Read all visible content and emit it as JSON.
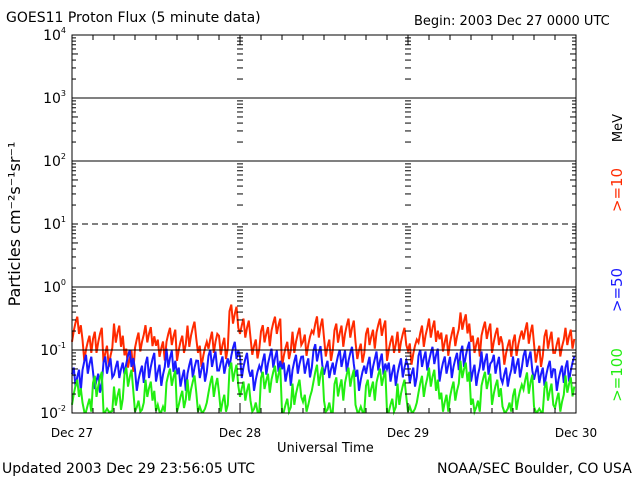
{
  "chart_data": {
    "type": "line",
    "title": "GOES11 Proton Flux (5 minute data)",
    "begin_label": "Begin: 2003 Dec 27 0000 UTC",
    "xlabel": "Universal Time",
    "ylabel": "Particles cm⁻²s⁻¹sr⁻¹",
    "yscale": "log",
    "ylim": [
      0.01,
      10000
    ],
    "ytick_labels": [
      {
        "base": "10",
        "exp": "4",
        "value": 10000
      },
      {
        "base": "10",
        "exp": "3",
        "value": 1000
      },
      {
        "base": "10",
        "exp": "2",
        "value": 100
      },
      {
        "base": "10",
        "exp": "1",
        "value": 10
      },
      {
        "base": "10",
        "exp": "0",
        "value": 1
      },
      {
        "base": "10",
        "exp": "-1",
        "value": 0.1
      },
      {
        "base": "10",
        "exp": "-2",
        "value": 0.01
      }
    ],
    "xlim_hours": [
      0,
      72
    ],
    "xtick_labels": [
      {
        "label": "Dec 27",
        "hour": 0
      },
      {
        "label": "Dec 28",
        "hour": 24
      },
      {
        "label": "Dec 29",
        "hour": 48
      },
      {
        "label": "Dec 30",
        "hour": 72
      }
    ],
    "units_label": "MeV",
    "x_hours_step": 1.5,
    "series": [
      {
        "name": ">=10",
        "color": "#ff2a00",
        "values": [
          0.3,
          0.15,
          0.2,
          0.12,
          0.25,
          0.1,
          0.18,
          0.22,
          0.13,
          0.2,
          0.15,
          0.25,
          0.12,
          0.2,
          0.16,
          0.5,
          0.3,
          0.14,
          0.22,
          0.3,
          0.12,
          0.2,
          0.18,
          0.35,
          0.15,
          0.25,
          0.3,
          0.12,
          0.2,
          0.28,
          0.15,
          0.2,
          0.13,
          0.25,
          0.3,
          0.18,
          0.22,
          0.35,
          0.15,
          0.25,
          0.2,
          0.13,
          0.18,
          0.28,
          0.12,
          0.2,
          0.15,
          0.2
        ]
      },
      {
        "name": ">=50",
        "color": "#1a1aff",
        "values": [
          0.05,
          0.08,
          0.04,
          0.07,
          0.06,
          0.09,
          0.05,
          0.08,
          0.06,
          0.1,
          0.05,
          0.07,
          0.06,
          0.09,
          0.07,
          0.12,
          0.08,
          0.05,
          0.09,
          0.1,
          0.06,
          0.08,
          0.07,
          0.11,
          0.06,
          0.09,
          0.1,
          0.05,
          0.08,
          0.09,
          0.06,
          0.07,
          0.05,
          0.09,
          0.1,
          0.07,
          0.08,
          0.12,
          0.06,
          0.09,
          0.08,
          0.05,
          0.07,
          0.09,
          0.05,
          0.06,
          0.05,
          0.07
        ]
      },
      {
        "name": ">=100",
        "color": "#22ee11",
        "values": [
          0.03,
          0.015,
          0.04,
          0.012,
          0.025,
          0.05,
          0.015,
          0.03,
          0.012,
          0.045,
          0.02,
          0.035,
          0.013,
          0.04,
          0.02,
          0.06,
          0.03,
          0.014,
          0.04,
          0.05,
          0.015,
          0.03,
          0.02,
          0.06,
          0.015,
          0.035,
          0.05,
          0.012,
          0.03,
          0.045,
          0.015,
          0.03,
          0.013,
          0.04,
          0.05,
          0.02,
          0.03,
          0.06,
          0.015,
          0.04,
          0.03,
          0.013,
          0.025,
          0.045,
          0.012,
          0.03,
          0.02,
          0.035
        ]
      }
    ]
  },
  "footer": {
    "updated": "Updated 2003 Dec 29 23:56:05 UTC",
    "credit": "NOAA/SEC Boulder, CO USA"
  }
}
